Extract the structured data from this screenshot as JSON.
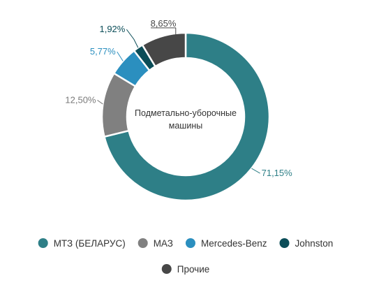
{
  "chart_data": {
    "type": "pie",
    "variant": "donut",
    "center_label": [
      "Подметально-уборочные",
      "машины"
    ],
    "slices": [
      {
        "name": "МТЗ (БЕЛАРУС)",
        "value": 71.15,
        "label": "71,15%",
        "color": "#2e7f87",
        "label_color": "#2e7f87"
      },
      {
        "name": "МАЗ",
        "value": 12.5,
        "label": "12,50%",
        "color": "#808080",
        "label_color": "#7a7a7a"
      },
      {
        "name": "Mercedes-Benz",
        "value": 5.77,
        "label": "5,77%",
        "color": "#2b8fbf",
        "label_color": "#2b8fbf"
      },
      {
        "name": "Johnston",
        "value": 1.92,
        "label": "1,92%",
        "color": "#0b4d58",
        "label_color": "#0b4d58"
      },
      {
        "name": "Прочие",
        "value": 8.65,
        "label": "8,65%",
        "color": "#474747",
        "label_color": "#474747"
      }
    ],
    "legend_position": "bottom"
  }
}
